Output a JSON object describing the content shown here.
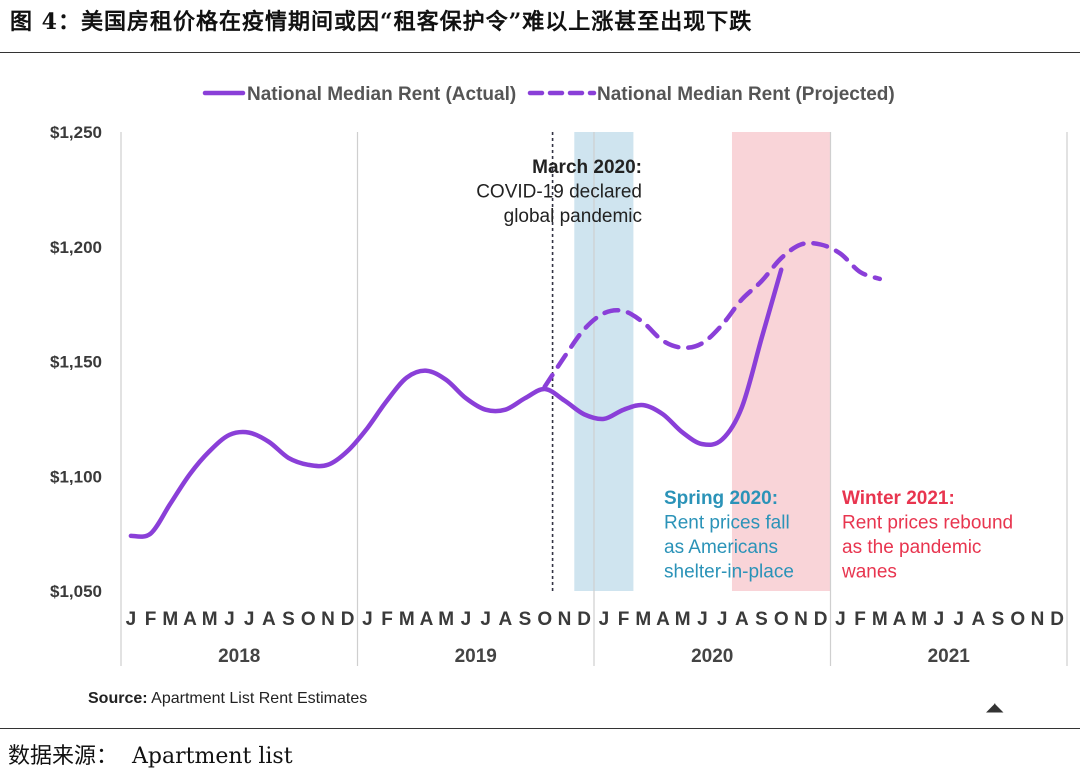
{
  "title": "图 4：美国房租价格在疫情期间或因“租客保护令”难以上涨甚至出现下跌",
  "footer": {
    "label": "数据来源：",
    "value": "Apartment list"
  },
  "source": {
    "label": "Source:",
    "value": "Apartment List Rent Estimates"
  },
  "chart_data": {
    "type": "line",
    "ylim": [
      1050,
      1250
    ],
    "yticks": [
      1050,
      1100,
      1150,
      1200,
      1250
    ],
    "ytick_labels": [
      "$1,050",
      "$1,100",
      "$1,150",
      "$1,200",
      "$1,250"
    ],
    "grid": "vertical year separators",
    "legend": "top-center",
    "years": [
      "2018",
      "2019",
      "2020",
      "2021"
    ],
    "month_letters": [
      "J",
      "F",
      "M",
      "A",
      "M",
      "J",
      "J",
      "A",
      "S",
      "O",
      "N",
      "D"
    ],
    "series": [
      {
        "name": "National Median Rent (Actual)",
        "style": "solid",
        "color": "#8a3fd8",
        "points": [
          [
            "2018-01",
            1074
          ],
          [
            "2018-02",
            1075
          ],
          [
            "2018-03",
            1088
          ],
          [
            "2018-04",
            1101
          ],
          [
            "2018-05",
            1111
          ],
          [
            "2018-06",
            1118
          ],
          [
            "2018-07",
            1119
          ],
          [
            "2018-08",
            1115
          ],
          [
            "2018-09",
            1108
          ],
          [
            "2018-10",
            1105
          ],
          [
            "2018-11",
            1105
          ],
          [
            "2018-12",
            1111
          ],
          [
            "2019-01",
            1121
          ],
          [
            "2019-02",
            1133
          ],
          [
            "2019-03",
            1143
          ],
          [
            "2019-04",
            1146
          ],
          [
            "2019-05",
            1142
          ],
          [
            "2019-06",
            1134
          ],
          [
            "2019-07",
            1129
          ],
          [
            "2019-08",
            1129
          ],
          [
            "2019-09",
            1134
          ],
          [
            "2019-10",
            1138
          ],
          [
            "2019-11",
            1133
          ],
          [
            "2019-12",
            1127
          ],
          [
            "2020-01",
            1125
          ],
          [
            "2020-02",
            1129
          ],
          [
            "2020-03",
            1131
          ],
          [
            "2020-04",
            1127
          ],
          [
            "2020-05",
            1119
          ],
          [
            "2020-06",
            1114
          ],
          [
            "2020-07",
            1116
          ],
          [
            "2020-08",
            1130
          ],
          [
            "2020-09",
            1160
          ],
          [
            "2020-10",
            1190
          ]
        ]
      },
      {
        "name": "National Median Rent (Projected)",
        "style": "dashed",
        "color": "#8a3fd8",
        "points": [
          [
            "2019-10",
            1139
          ],
          [
            "2019-11",
            1152
          ],
          [
            "2019-12",
            1164
          ],
          [
            "2020-01",
            1171
          ],
          [
            "2020-02",
            1172
          ],
          [
            "2020-03",
            1167
          ],
          [
            "2020-04",
            1159
          ],
          [
            "2020-05",
            1156
          ],
          [
            "2020-06",
            1158
          ],
          [
            "2020-07",
            1166
          ],
          [
            "2020-08",
            1177
          ],
          [
            "2020-09",
            1185
          ],
          [
            "2020-10",
            1195
          ],
          [
            "2020-11",
            1201
          ],
          [
            "2020-12",
            1201
          ],
          [
            "2021-01",
            1197
          ],
          [
            "2021-02",
            1189
          ],
          [
            "2021-03",
            1186
          ]
        ]
      }
    ],
    "bands": [
      {
        "name": "spring-2020",
        "start": "2019-12",
        "end": "2020-02",
        "color": "#cfe4ef"
      },
      {
        "name": "winter-2021",
        "start": "2020-08",
        "end": "2020-12",
        "color": "#f9d4d8"
      }
    ],
    "marker_line": {
      "at": "2019-10",
      "style": "dotted",
      "color": "#334"
    },
    "annotations": [
      {
        "lines": [
          "March 2020:",
          "COVID-19 declared",
          "global pandemic"
        ],
        "color": "#222",
        "align": "right"
      },
      {
        "lines": [
          "Spring 2020:",
          "Rent prices fall",
          "as Americans",
          "shelter-in-place"
        ],
        "color": "#2b93b8",
        "align": "left"
      },
      {
        "lines": [
          "Winter 2021:",
          "Rent prices rebound",
          "as the pandemic",
          "wanes"
        ],
        "color": "#e8354f",
        "align": "left"
      }
    ]
  }
}
